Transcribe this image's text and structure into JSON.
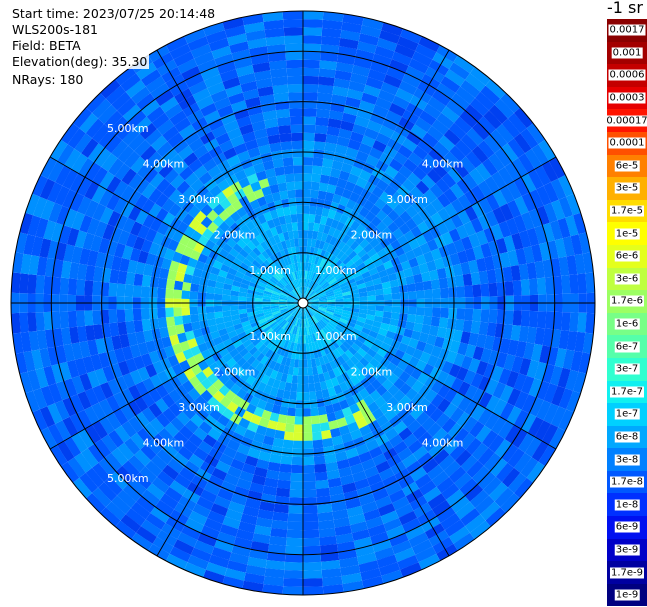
{
  "info": {
    "start_time": "Start time: 2023/07/25 20:14:48",
    "instrument": "WLS200s-181",
    "field": "Field: BETA",
    "elevation": "Elevation(deg): 35.30",
    "nrays": "NRays: 180"
  },
  "colorbar": {
    "unit": "-1 sr",
    "entries": [
      {
        "label": "0.0017",
        "color": "#8b0000"
      },
      {
        "label": "0.001",
        "color": "#a30000"
      },
      {
        "label": "0.0006",
        "color": "#c40000"
      },
      {
        "label": "0.0003",
        "color": "#e60000"
      },
      {
        "label": "0.00017",
        "color": "#ff1400"
      },
      {
        "label": "0.0001",
        "color": "#ff5000"
      },
      {
        "label": "6e-5",
        "color": "#ff8000"
      },
      {
        "label": "3e-5",
        "color": "#ffb000"
      },
      {
        "label": "1.7e-5",
        "color": "#ffdc00"
      },
      {
        "label": "1e-5",
        "color": "#ffff00"
      },
      {
        "label": "6e-6",
        "color": "#e4ff1c"
      },
      {
        "label": "3e-6",
        "color": "#bfff40"
      },
      {
        "label": "1.7e-6",
        "color": "#9cff63"
      },
      {
        "label": "1e-6",
        "color": "#78ff87"
      },
      {
        "label": "6e-7",
        "color": "#55ffaa"
      },
      {
        "label": "3e-7",
        "color": "#30ffd0"
      },
      {
        "label": "1.7e-7",
        "color": "#10f0f0"
      },
      {
        "label": "1e-7",
        "color": "#00d0ff"
      },
      {
        "label": "6e-8",
        "color": "#00a8ff"
      },
      {
        "label": "3e-8",
        "color": "#0080ff"
      },
      {
        "label": "1.7e-8",
        "color": "#0058ff"
      },
      {
        "label": "1e-8",
        "color": "#0030ff"
      },
      {
        "label": "6e-9",
        "color": "#0010f0"
      },
      {
        "label": "3e-9",
        "color": "#0000c8"
      },
      {
        "label": "1.7e-9",
        "color": "#0000a0"
      },
      {
        "label": "1e-9",
        "color": "#000080"
      }
    ]
  },
  "chart_data": {
    "type": "heatmap",
    "projection": "polar",
    "range_rings_km": [
      1,
      2,
      3,
      4,
      5
    ],
    "max_range_km": 5.8,
    "radial_spoke_step_deg": 30,
    "range_labels": [
      "1.00km",
      "2.00km",
      "3.00km",
      "4.00km",
      "5.00km"
    ],
    "field": "BETA",
    "nrays": 180,
    "background_level": "1.7e-8",
    "features": [
      {
        "description_level": "1.7e-6",
        "range_km": [
          2.3,
          2.7
        ],
        "azimuth_deg": [
          150,
          340
        ]
      }
    ]
  }
}
